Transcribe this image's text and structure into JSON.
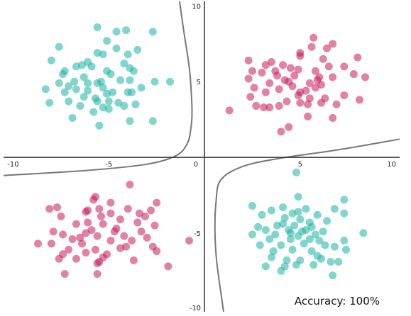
{
  "chart_data": {
    "type": "scatter",
    "title": "",
    "xlabel": "",
    "ylabel": "",
    "xlim": [
      -10.5,
      10.2
    ],
    "ylim": [
      -10.2,
      10.3
    ],
    "grid": false,
    "x_ticks": [
      -10,
      -5,
      0,
      5,
      10
    ],
    "y_ticks": [
      -10,
      -5,
      5,
      10
    ],
    "origin_label": "0",
    "colors": {
      "teal": "#1ab3a3",
      "crimson": "#c8195a",
      "boundary": "#777777",
      "axis": "#333333"
    },
    "annotation": "Accuracy: 100%",
    "series": [
      {
        "color": "teal",
        "points": [
          [
            -5.6,
            8.6
          ],
          [
            -4.1,
            8.4
          ],
          [
            -4.6,
            8.3
          ],
          [
            -2.7,
            8.3
          ],
          [
            -5.1,
            7.7
          ],
          [
            -4.6,
            7.2
          ],
          [
            -7.6,
            7.3
          ],
          [
            -3.5,
            7.1
          ],
          [
            -5.6,
            6.9
          ],
          [
            -5.3,
            6.8
          ],
          [
            -4.0,
            6.8
          ],
          [
            -8.0,
            6.4
          ],
          [
            -6.1,
            6.3
          ],
          [
            -4.2,
            6.2
          ],
          [
            -6.7,
            6.0
          ],
          [
            -6.4,
            6.1
          ],
          [
            -5.9,
            6.0
          ],
          [
            -3.9,
            5.9
          ],
          [
            -7.3,
            5.7
          ],
          [
            -5.1,
            5.7
          ],
          [
            -7.4,
            5.5
          ],
          [
            -4.9,
            5.5
          ],
          [
            -3.7,
            5.7
          ],
          [
            -6.3,
            5.3
          ],
          [
            -4.4,
            5.1
          ],
          [
            -7.6,
            4.9
          ],
          [
            -6.8,
            5.0
          ],
          [
            -3.9,
            5.1
          ],
          [
            -5.6,
            4.9
          ],
          [
            -7.1,
            4.7
          ],
          [
            -5.3,
            4.6
          ],
          [
            -2.6,
            5.0
          ],
          [
            -1.8,
            5.0
          ],
          [
            -7.3,
            4.3
          ],
          [
            -6.1,
            4.4
          ],
          [
            -4.8,
            4.3
          ],
          [
            -3.3,
            4.6
          ],
          [
            -8.3,
            4.5
          ],
          [
            -5.1,
            4.2
          ],
          [
            -4.0,
            4.3
          ],
          [
            -6.3,
            4.0
          ],
          [
            -5.7,
            3.9
          ],
          [
            -7.1,
            3.7
          ],
          [
            -3.6,
            3.5
          ],
          [
            -5.6,
            3.7
          ],
          [
            -4.2,
            3.4
          ],
          [
            -8.1,
            3.6
          ],
          [
            -6.5,
            3.4
          ],
          [
            -5.8,
            3.0
          ],
          [
            -5.0,
            3.2
          ],
          [
            -6.9,
            2.6
          ],
          [
            -5.5,
            2.1
          ],
          [
            -3.9,
            2.4
          ],
          [
            -2.7,
            2.4
          ],
          [
            -6.1,
            4.9
          ],
          [
            -5.0,
            3.7
          ],
          [
            -4.5,
            3.6
          ],
          [
            -6.7,
            4.5
          ],
          [
            -3.8,
            4.3
          ],
          [
            -5.3,
            3.3
          ],
          [
            -5.4,
            5.0
          ]
        ]
      },
      {
        "color": "crimson",
        "points": [
          [
            5.7,
            7.9
          ],
          [
            5.6,
            7.3
          ],
          [
            6.7,
            7.5
          ],
          [
            6.4,
            7.2
          ],
          [
            5.0,
            6.9
          ],
          [
            8.0,
            6.6
          ],
          [
            5.0,
            6.7
          ],
          [
            6.2,
            6.5
          ],
          [
            3.5,
            6.3
          ],
          [
            4.1,
            6.1
          ],
          [
            2.3,
            6.4
          ],
          [
            3.2,
            6.1
          ],
          [
            4.5,
            5.9
          ],
          [
            6.5,
            6.0
          ],
          [
            7.3,
            6.0
          ],
          [
            2.5,
            5.7
          ],
          [
            4.9,
            5.8
          ],
          [
            3.0,
            5.6
          ],
          [
            5.8,
            5.7
          ],
          [
            6.7,
            5.3
          ],
          [
            2.3,
            5.2
          ],
          [
            3.8,
            5.4
          ],
          [
            4.7,
            5.4
          ],
          [
            6.0,
            5.3
          ],
          [
            7.8,
            5.5
          ],
          [
            8.4,
            5.3
          ],
          [
            3.4,
            4.9
          ],
          [
            4.4,
            5.0
          ],
          [
            5.5,
            4.9
          ],
          [
            6.1,
            4.8
          ],
          [
            2.6,
            4.6
          ],
          [
            3.9,
            4.5
          ],
          [
            5.0,
            4.3
          ],
          [
            5.8,
            4.6
          ],
          [
            7.3,
            4.1
          ],
          [
            3.2,
            4.3
          ],
          [
            4.9,
            4.1
          ],
          [
            5.5,
            3.9
          ],
          [
            2.4,
            4.0
          ],
          [
            4.3,
            3.7
          ],
          [
            5.4,
            3.5
          ],
          [
            6.3,
            3.9
          ],
          [
            6.9,
            3.5
          ],
          [
            8.1,
            3.8
          ],
          [
            2.7,
            3.4
          ],
          [
            3.1,
            3.3
          ],
          [
            3.9,
            3.4
          ],
          [
            5.0,
            3.6
          ],
          [
            6.1,
            3.6
          ],
          [
            3.4,
            3.3
          ],
          [
            5.4,
            2.7
          ],
          [
            6.7,
            2.6
          ],
          [
            4.4,
            2.0
          ],
          [
            4.0,
            1.7
          ],
          [
            1.3,
            3.1
          ],
          [
            5.3,
            4.4
          ],
          [
            4.2,
            5.1
          ],
          [
            5.9,
            5.1
          ],
          [
            3.7,
            5.7
          ],
          [
            4.6,
            4.7
          ]
        ]
      },
      {
        "color": "crimson",
        "points": [
          [
            -3.9,
            -1.8
          ],
          [
            -5.7,
            -2.6
          ],
          [
            -2.5,
            -3.0
          ],
          [
            -5.8,
            -2.8
          ],
          [
            -4.9,
            -3.0
          ],
          [
            -7.7,
            -3.3
          ],
          [
            -8.1,
            -3.4
          ],
          [
            -5.5,
            -3.4
          ],
          [
            -4.0,
            -3.4
          ],
          [
            -2.8,
            -3.5
          ],
          [
            -3.4,
            -3.7
          ],
          [
            -6.2,
            -3.6
          ],
          [
            -4.9,
            -3.7
          ],
          [
            -3.1,
            -3.9
          ],
          [
            -5.4,
            -3.9
          ],
          [
            -7.5,
            -3.9
          ],
          [
            -6.1,
            -4.3
          ],
          [
            -4.4,
            -4.1
          ],
          [
            -6.7,
            -4.4
          ],
          [
            -5.3,
            -4.4
          ],
          [
            -2.6,
            -4.5
          ],
          [
            -7.9,
            -4.9
          ],
          [
            -5.9,
            -4.8
          ],
          [
            -4.6,
            -4.7
          ],
          [
            -3.3,
            -4.9
          ],
          [
            -6.2,
            -5.0
          ],
          [
            -7.4,
            -5.1
          ],
          [
            -5.6,
            -5.2
          ],
          [
            -4.2,
            -5.2
          ],
          [
            -3.0,
            -5.3
          ],
          [
            -6.9,
            -5.4
          ],
          [
            -4.9,
            -5.5
          ],
          [
            -3.8,
            -5.5
          ],
          [
            -8.0,
            -5.7
          ],
          [
            -6.4,
            -5.7
          ],
          [
            -4.1,
            -5.9
          ],
          [
            -2.7,
            -5.9
          ],
          [
            -7.1,
            -6.1
          ],
          [
            -5.7,
            -6.1
          ],
          [
            -4.4,
            -6.0
          ],
          [
            -8.7,
            -5.7
          ],
          [
            -6.2,
            -6.3
          ],
          [
            -7.4,
            -6.4
          ],
          [
            -5.1,
            -6.4
          ],
          [
            -2.5,
            -6.2
          ],
          [
            -6.7,
            -6.7
          ],
          [
            -7.6,
            -6.7
          ],
          [
            -5.5,
            -6.9
          ],
          [
            -3.7,
            -6.8
          ],
          [
            -5.6,
            -7.0
          ],
          [
            -1.9,
            -7.2
          ],
          [
            -7.3,
            -7.7
          ],
          [
            -5.6,
            -7.7
          ],
          [
            -0.8,
            -5.5
          ],
          [
            -6.1,
            -3.5
          ],
          [
            -4.7,
            -4.9
          ],
          [
            -6.5,
            -5.3
          ],
          [
            -3.5,
            -4.3
          ],
          [
            -5.3,
            -6.6
          ]
        ]
      },
      {
        "color": "teal",
        "points": [
          [
            4.8,
            -1.0
          ],
          [
            4.9,
            -2.6
          ],
          [
            7.3,
            -2.8
          ],
          [
            2.5,
            -3.2
          ],
          [
            4.1,
            -3.3
          ],
          [
            6.8,
            -3.4
          ],
          [
            3.5,
            -3.5
          ],
          [
            5.3,
            -3.4
          ],
          [
            7.3,
            -3.7
          ],
          [
            3.0,
            -3.8
          ],
          [
            4.6,
            -3.7
          ],
          [
            5.9,
            -3.8
          ],
          [
            4.2,
            -4.0
          ],
          [
            5.0,
            -4.1
          ],
          [
            5.5,
            -4.3
          ],
          [
            6.4,
            -4.2
          ],
          [
            2.8,
            -4.6
          ],
          [
            4.1,
            -4.4
          ],
          [
            4.7,
            -4.5
          ],
          [
            5.6,
            -4.6
          ],
          [
            3.2,
            -4.8
          ],
          [
            4.4,
            -4.8
          ],
          [
            5.1,
            -4.9
          ],
          [
            6.2,
            -4.9
          ],
          [
            2.5,
            -5.1
          ],
          [
            3.7,
            -5.1
          ],
          [
            4.9,
            -5.2
          ],
          [
            5.8,
            -5.1
          ],
          [
            8.3,
            -5.0
          ],
          [
            3.4,
            -5.4
          ],
          [
            4.5,
            -5.4
          ],
          [
            5.5,
            -5.4
          ],
          [
            7.3,
            -5.5
          ],
          [
            2.9,
            -5.8
          ],
          [
            4.0,
            -5.8
          ],
          [
            5.2,
            -5.7
          ],
          [
            6.3,
            -5.8
          ],
          [
            6.8,
            -5.9
          ],
          [
            3.6,
            -6.2
          ],
          [
            4.6,
            -6.1
          ],
          [
            5.6,
            -6.2
          ],
          [
            7.4,
            -6.1
          ],
          [
            5.9,
            -6.5
          ],
          [
            3.5,
            -6.6
          ],
          [
            4.3,
            -6.8
          ],
          [
            5.0,
            -6.8
          ],
          [
            6.1,
            -6.7
          ],
          [
            7.0,
            -6.9
          ],
          [
            6.6,
            -6.9
          ],
          [
            4.2,
            -7.2
          ],
          [
            3.2,
            -7.2
          ],
          [
            4.8,
            -7.1
          ],
          [
            4.0,
            -7.5
          ],
          [
            6.7,
            -7.8
          ],
          [
            4.5,
            -5.0
          ],
          [
            5.3,
            -4.8
          ],
          [
            3.8,
            -4.5
          ],
          [
            4.9,
            -3.6
          ],
          [
            6.0,
            -5.5
          ],
          [
            5.7,
            -7.1
          ]
        ]
      }
    ],
    "boundaries": [
      {
        "points": [
          [
            -10.5,
            -1.2
          ],
          [
            -6,
            -0.85
          ],
          [
            -3,
            -0.45
          ],
          [
            -1.5,
            0.1
          ],
          [
            -0.9,
            0.9
          ],
          [
            -0.7,
            2
          ],
          [
            -0.65,
            3
          ],
          [
            -0.7,
            4.5
          ],
          [
            -0.8,
            6
          ],
          [
            -1.1,
            8.5
          ],
          [
            -1.3,
            10.3
          ]
        ]
      },
      {
        "points": [
          [
            1.0,
            -10.2
          ],
          [
            0.65,
            -7
          ],
          [
            0.55,
            -5
          ],
          [
            0.6,
            -3
          ],
          [
            0.85,
            -1.5
          ],
          [
            2,
            -0.6
          ],
          [
            4,
            -0.05
          ],
          [
            7,
            0.5
          ],
          [
            10.2,
            1.2
          ]
        ]
      }
    ]
  }
}
